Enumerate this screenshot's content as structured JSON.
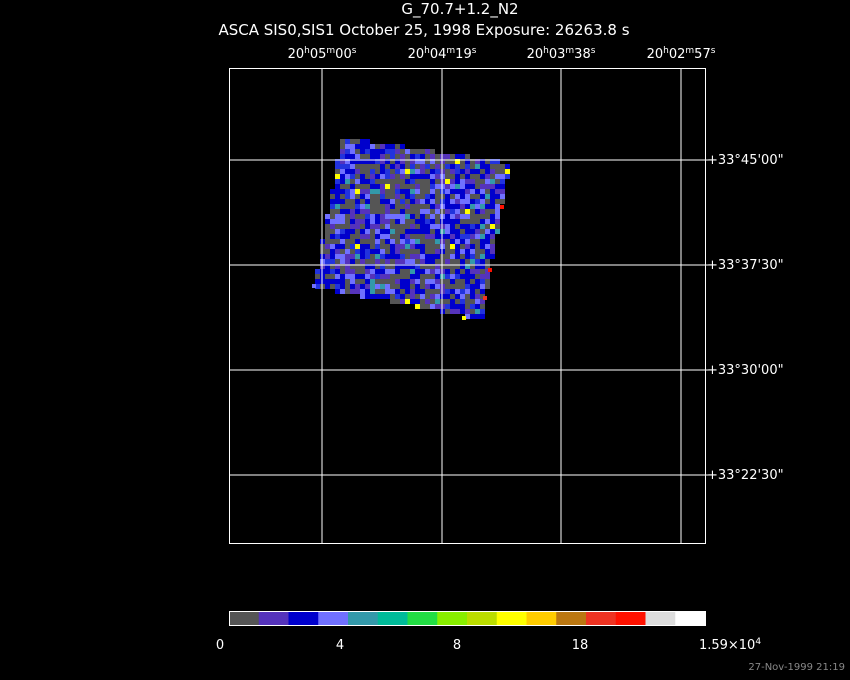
{
  "header": {
    "title": "G_70.7+1.2_N2",
    "subtitle": "ASCA SIS0,SIS1 October 25, 1998 Exposure: 26263.8 s"
  },
  "ra_labels": [
    [
      "20",
      "h",
      "05",
      "m",
      "00",
      "s"
    ],
    [
      "20",
      "h",
      "04",
      "m",
      "19",
      "s"
    ],
    [
      "20",
      "h",
      "03",
      "m",
      "38",
      "s"
    ],
    [
      "20",
      "h",
      "02",
      "m",
      "57",
      "s"
    ]
  ],
  "dec_labels": [
    "+33°45'00\"",
    "+33°37'30\"",
    "+33°30'00\"",
    "+33°22'30\""
  ],
  "colorbar": {
    "colors": [
      "#555555",
      "#5533bb",
      "#0000cc",
      "#7070ff",
      "#3399aa",
      "#00bb99",
      "#22dd44",
      "#88ee00",
      "#bbdd00",
      "#ffff00",
      "#ffcc00",
      "#bb7711",
      "#ee3322",
      "#ff1100",
      "#dddddd",
      "#ffffff"
    ],
    "labels": [
      [
        "0"
      ],
      [
        "4"
      ],
      [
        "8"
      ],
      [
        "18"
      ],
      [
        "1.59×10",
        "4"
      ]
    ]
  },
  "footer": {
    "timestamp": "27-Nov-1999 21:19"
  }
}
